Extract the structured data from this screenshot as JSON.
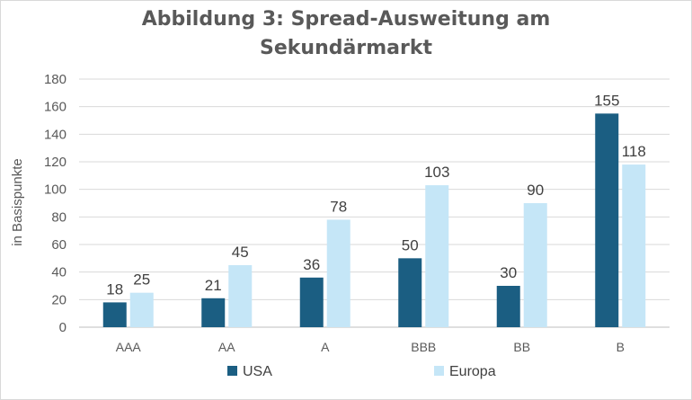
{
  "chart_data": {
    "type": "bar",
    "title_lines": [
      "Abbildung 3: Spread-Ausweitung am",
      "Sekundärmarkt"
    ],
    "ylabel": "in Basispunkte",
    "xlabel": "",
    "categories": [
      "AAA",
      "AA",
      "A",
      "BBB",
      "BB",
      "B"
    ],
    "series": [
      {
        "name": "USA",
        "color": "#1b5e82",
        "values": [
          18,
          21,
          36,
          50,
          30,
          155
        ]
      },
      {
        "name": "Europa",
        "color": "#c5e6f7",
        "values": [
          25,
          45,
          78,
          103,
          90,
          118
        ]
      }
    ],
    "ylim": [
      0,
      180
    ],
    "yticks": [
      0,
      20,
      40,
      60,
      80,
      100,
      120,
      140,
      160,
      180
    ],
    "grid": true,
    "legend": "bottom",
    "data_labels": true
  }
}
